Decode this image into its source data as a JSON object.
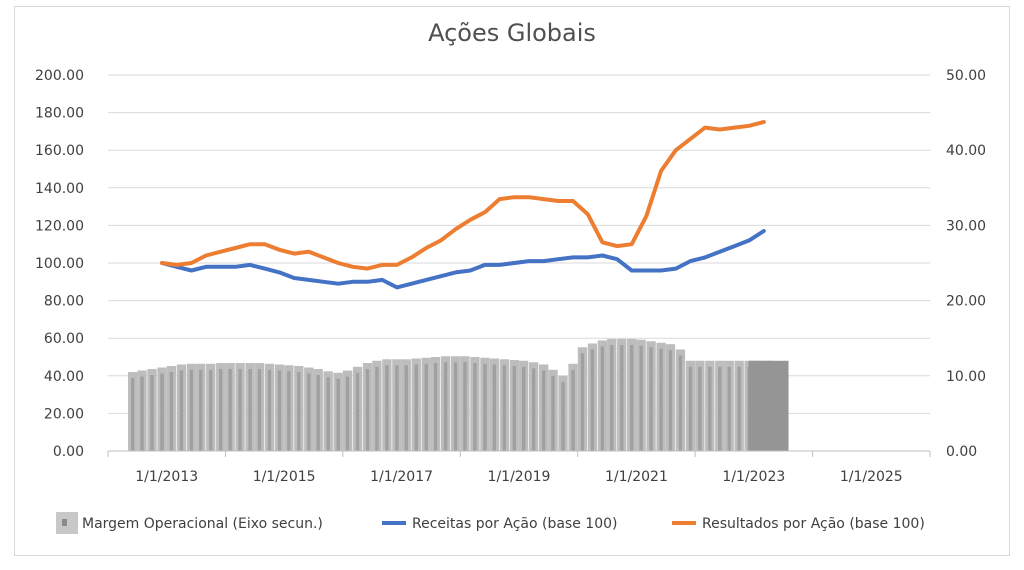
{
  "chart_data": {
    "type": "bar+line",
    "title": "Ações Globais",
    "xlabel": "",
    "ylabel": "",
    "x_ticks": [
      "1/1/2013",
      "1/1/2015",
      "1/1/2017",
      "1/1/2019",
      "1/1/2021",
      "1/1/2023",
      "1/1/2025"
    ],
    "x_range": [
      2012.0,
      2026.0
    ],
    "y_left": {
      "range": [
        0,
        200
      ],
      "ticks": [
        "0.00",
        "20.00",
        "40.00",
        "60.00",
        "80.00",
        "100.00",
        "120.00",
        "140.00",
        "160.00",
        "180.00",
        "200.00"
      ]
    },
    "y_right": {
      "range": [
        0,
        50
      ],
      "ticks": [
        "0.00",
        "10.00",
        "20.00",
        "30.00",
        "40.00",
        "50.00"
      ]
    },
    "grid": true,
    "legend_position": "bottom",
    "series": [
      {
        "name": "Margem Operacional (Eixo secun.)",
        "kind": "bar",
        "axis": "right",
        "color": "#a6a6a6",
        "x": [
          2012.42,
          2012.58,
          2012.75,
          2012.92,
          2013.08,
          2013.25,
          2013.42,
          2013.58,
          2013.75,
          2013.92,
          2014.08,
          2014.25,
          2014.42,
          2014.58,
          2014.75,
          2014.92,
          2015.08,
          2015.25,
          2015.42,
          2015.58,
          2015.75,
          2015.92,
          2016.08,
          2016.25,
          2016.42,
          2016.58,
          2016.75,
          2016.92,
          2017.08,
          2017.25,
          2017.42,
          2017.58,
          2017.75,
          2017.92,
          2018.08,
          2018.25,
          2018.42,
          2018.58,
          2018.75,
          2018.92,
          2019.08,
          2019.25,
          2019.42,
          2019.58,
          2019.75,
          2019.92,
          2020.08,
          2020.25,
          2020.42,
          2020.58,
          2020.75,
          2020.92,
          2021.08,
          2021.25,
          2021.42,
          2021.58,
          2021.75,
          2021.92,
          2022.08,
          2022.25,
          2022.42,
          2022.58,
          2022.75,
          2022.92,
          2023.08,
          2023.25
        ],
        "values": [
          10.5,
          10.7,
          10.9,
          11.1,
          11.3,
          11.5,
          11.6,
          11.6,
          11.6,
          11.7,
          11.7,
          11.7,
          11.7,
          11.7,
          11.6,
          11.5,
          11.4,
          11.3,
          11.1,
          10.9,
          10.6,
          10.4,
          10.7,
          11.2,
          11.7,
          12.0,
          12.2,
          12.2,
          12.2,
          12.3,
          12.4,
          12.5,
          12.6,
          12.6,
          12.6,
          12.5,
          12.4,
          12.3,
          12.2,
          12.1,
          12.0,
          11.8,
          11.5,
          10.8,
          10.0,
          11.6,
          13.8,
          14.3,
          14.7,
          14.9,
          14.9,
          14.9,
          14.8,
          14.6,
          14.4,
          14.2,
          13.5,
          12.0,
          12.0,
          12.0,
          12.0,
          12.0,
          12.0,
          12.0,
          12.0,
          12.0
        ]
      },
      {
        "name": "Receitas por Ação (base 100)",
        "kind": "line",
        "axis": "left",
        "color": "#4472c4",
        "x": [
          2012.92,
          2013.17,
          2013.42,
          2013.67,
          2013.92,
          2014.17,
          2014.42,
          2014.67,
          2014.92,
          2015.17,
          2015.42,
          2015.67,
          2015.92,
          2016.17,
          2016.42,
          2016.67,
          2016.92,
          2017.17,
          2017.42,
          2017.67,
          2017.92,
          2018.17,
          2018.42,
          2018.67,
          2018.92,
          2019.17,
          2019.42,
          2019.67,
          2019.92,
          2020.17,
          2020.42,
          2020.67,
          2020.92,
          2021.17,
          2021.42,
          2021.67,
          2021.92,
          2022.17,
          2022.42,
          2022.67,
          2022.92,
          2023.17
        ],
        "values": [
          100,
          98,
          96,
          98,
          98,
          98,
          99,
          97,
          95,
          92,
          91,
          90,
          89,
          90,
          90,
          91,
          87,
          89,
          91,
          93,
          95,
          96,
          99,
          99,
          100,
          101,
          101,
          102,
          103,
          103,
          104,
          102,
          96,
          96,
          96,
          97,
          101,
          103,
          106,
          109,
          112,
          117
        ]
      },
      {
        "name": "Resultados por Ação (base 100)",
        "kind": "line",
        "axis": "left",
        "color": "#ed7d31",
        "x": [
          2012.92,
          2013.17,
          2013.42,
          2013.67,
          2013.92,
          2014.17,
          2014.42,
          2014.67,
          2014.92,
          2015.17,
          2015.42,
          2015.67,
          2015.92,
          2016.17,
          2016.42,
          2016.67,
          2016.92,
          2017.17,
          2017.42,
          2017.67,
          2017.92,
          2018.17,
          2018.42,
          2018.67,
          2018.92,
          2019.17,
          2019.42,
          2019.67,
          2019.92,
          2020.17,
          2020.42,
          2020.67,
          2020.92,
          2021.17,
          2021.42,
          2021.67,
          2021.92,
          2022.17,
          2022.42,
          2022.67,
          2022.92,
          2023.17
        ],
        "values": [
          100,
          99,
          100,
          104,
          106,
          108,
          110,
          110,
          107,
          105,
          106,
          103,
          100,
          98,
          97,
          99,
          99,
          103,
          108,
          112,
          118,
          123,
          127,
          134,
          135,
          135,
          134,
          133,
          133,
          126,
          111,
          109,
          110,
          125,
          149,
          160,
          166,
          172,
          171,
          172,
          173,
          175
        ]
      }
    ]
  }
}
